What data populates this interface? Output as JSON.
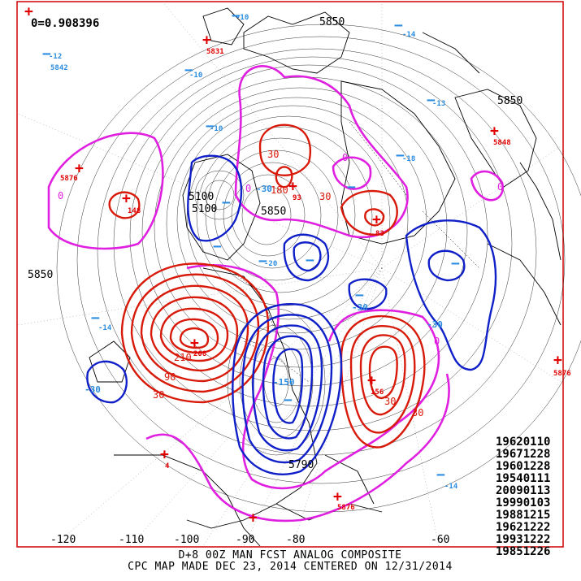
{
  "map": {
    "correlation": "0=0.908396",
    "caption_line1": "D+8 00Z MAN FCST ANALOG COMPOSITE",
    "caption_line2": "CPC MAP MADE DEC 23, 2014 CENTERED ON 12/31/2014",
    "height_labels": [
      "5850",
      "5850",
      "5850",
      "5100",
      "5100",
      "5790",
      "5850"
    ],
    "lon_labels": [
      "-120",
      "-110",
      "-100",
      "-90",
      "-80",
      "-60"
    ],
    "anomaly_labels": {
      "positive": [
        "210",
        "30",
        "90",
        "30",
        "30",
        "30",
        "180",
        "30"
      ],
      "negative": [
        "-30",
        "-30",
        "-30",
        "-30",
        "-150"
      ],
      "zero": [
        "0",
        "0",
        "0",
        "0",
        "0"
      ]
    },
    "highs": [
      {
        "value": "5831"
      },
      {
        "value": "5876"
      },
      {
        "value": "148"
      },
      {
        "value": "5848"
      },
      {
        "value": "93"
      },
      {
        "value": "83"
      },
      {
        "value": "208"
      },
      {
        "value": "156"
      },
      {
        "value": "5876"
      },
      {
        "value": "4"
      },
      {
        "value": "5876"
      }
    ],
    "lows": [
      {
        "value": "-10"
      },
      {
        "value": "-12"
      },
      {
        "value": "5842"
      },
      {
        "value": "-10"
      },
      {
        "value": "-14"
      },
      {
        "value": "-13"
      },
      {
        "value": "-18"
      },
      {
        "value": "-10"
      },
      {
        "value": "-14"
      },
      {
        "value": "-20"
      },
      {
        "value": "-14"
      }
    ],
    "analog_dates": [
      "19620110",
      "19671228",
      "19601228",
      "19540111",
      "20090113",
      "19990103",
      "19881215",
      "19621222",
      "19931222",
      "19851226"
    ]
  }
}
